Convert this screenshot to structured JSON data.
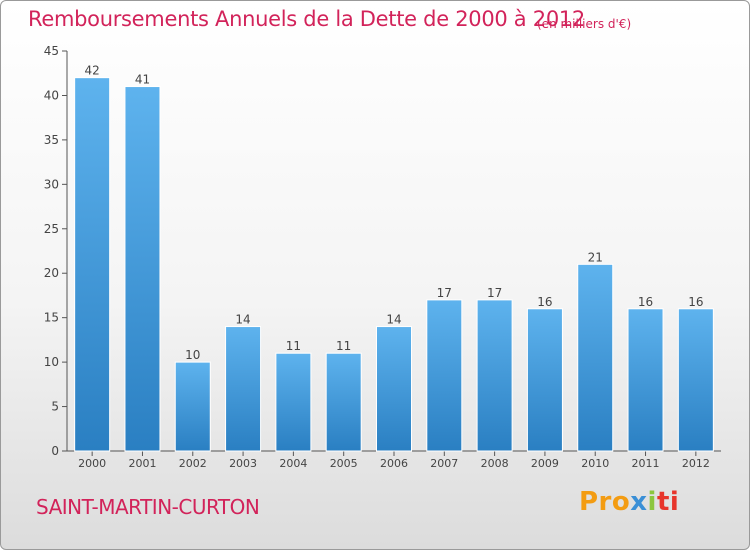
{
  "header": {
    "title": "Remboursements Annuels de la Dette de 2000 à 2012",
    "subtitle": "(en milliers d'€)"
  },
  "footer": {
    "commune": "SAINT-MARTIN-CURTON",
    "logo_parts": [
      "Pro",
      "x",
      "i",
      "ti"
    ]
  },
  "colors": {
    "title": "#d2235a",
    "bar_top": "#5eb3ee",
    "bar_bottom": "#2a7fc2",
    "axis": "#555555"
  },
  "chart_data": {
    "type": "bar",
    "title": "Remboursements Annuels de la Dette de 2000 à 2012",
    "subtitle": "(en milliers d'€)",
    "categories": [
      "2000",
      "2001",
      "2002",
      "2003",
      "2004",
      "2005",
      "2006",
      "2007",
      "2008",
      "2009",
      "2010",
      "2011",
      "2012"
    ],
    "values": [
      42,
      41,
      10,
      14,
      11,
      11,
      14,
      17,
      17,
      16,
      21,
      16,
      16
    ],
    "ylim": [
      0,
      45
    ],
    "yticks": [
      0,
      5,
      10,
      15,
      20,
      25,
      30,
      35,
      40,
      45
    ],
    "grid": false,
    "xlabel": "",
    "ylabel": ""
  }
}
